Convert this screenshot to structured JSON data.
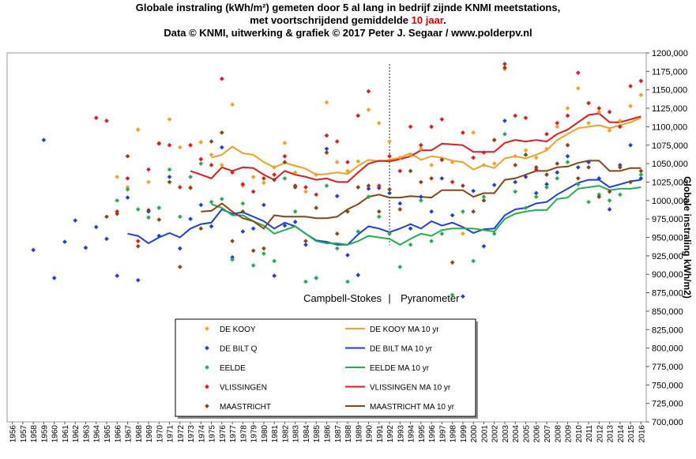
{
  "title": {
    "line1": "Globale instraling  (kWh/m²)  gemeten door  5 al lang in bedrijf  zijnde  KNMI  meetstations,",
    "line2_before": "met voortschrijdend  gemiddelde ",
    "line2_highlight": "10 jaar",
    "line2_after": ".",
    "line3": "Data © KNMI,  uitwerking  & grafiek  © 2017  Peter  J. Segaar  /  www.polderpv.nl"
  },
  "colors": {
    "de_kooy": "#f5a020",
    "de_bilt": "#1f3fe0",
    "eelde": "#21b14c",
    "vlissingen": "#e41a1a",
    "maastricht": "#8b4513",
    "accent_red": "#e00000"
  },
  "chart_data": {
    "type": "scatter",
    "x_start": 1956,
    "x_end": 2016,
    "ylabel": "Globale instraling  kWh/m2)",
    "ylim": [
      700,
      1200
    ],
    "y_tick_step": 25,
    "annotation": {
      "left": "Campbell-Stokes",
      "separator": "|",
      "right": "Pyranometer",
      "divider_year": 1992
    },
    "legend_placement": "bottom-center",
    "series": [
      {
        "name": "DE KOOY",
        "kind": "points",
        "color_key": "de_kooy",
        "x": [
          1966,
          1967,
          1968,
          1969,
          1970,
          1971,
          1972,
          1973,
          1974,
          1975,
          1976,
          1977,
          1978,
          1979,
          1980,
          1981,
          1982,
          1983,
          1984,
          1985,
          1986,
          1987,
          1988,
          1989,
          1990,
          1991,
          1992,
          1993,
          1994,
          1995,
          1996,
          1997,
          1998,
          1999,
          2000,
          2001,
          2002,
          2003,
          2004,
          2005,
          2006,
          2007,
          2008,
          2009,
          2010,
          2011,
          2012,
          2013,
          2014,
          2015,
          2016
        ],
        "y": [
          1032,
          1018,
          1096,
          1025,
          1078,
          1110,
          1072,
          1018,
          1079,
          1062,
          1048,
          1130,
          1020,
          1032,
          1024,
          1045,
          1078,
          1038,
          1012,
          1035,
          1133,
          1052,
          1040,
          1053,
          1123,
          1105,
          1080,
          1058,
          1062,
          1070,
          1048,
          1056,
          1052,
          955,
          1092,
          1048,
          1050,
          1178,
          1060,
          1068,
          1058,
          1070,
          1100,
          1125,
          1152,
          1105,
          1120,
          1095,
          1108,
          1128,
          1143
        ]
      },
      {
        "name": "DE BILT Q",
        "kind": "points",
        "color_key": "de_bilt",
        "x": [
          1958,
          1959,
          1960,
          1961,
          1962,
          1963,
          1964,
          1965,
          1966,
          1967,
          1968,
          1969,
          1970,
          1971,
          1972,
          1973,
          1974,
          1975,
          1976,
          1977,
          1978,
          1979,
          1980,
          1981,
          1982,
          1983,
          1984,
          1985,
          1986,
          1987,
          1988,
          1989,
          1990,
          1991,
          1992,
          1993,
          1994,
          1995,
          1996,
          1997,
          1998,
          1999,
          2000,
          2001,
          2002,
          2003,
          2004,
          2005,
          2006,
          2007,
          2008,
          2009,
          2010,
          2011,
          2012,
          2013,
          2014,
          2015,
          2016
        ],
        "y": [
          933,
          1082,
          895,
          944,
          973,
          936,
          964,
          948,
          898,
          1004,
          892,
          985,
          952,
          1032,
          935,
          975,
          994,
          965,
          1072,
          923,
          958,
          962,
          994,
          898,
          966,
          971,
          940,
          895,
          1070,
          1006,
          926,
          899,
          1016,
          1017,
          1010,
          996,
          962,
          1005,
          985,
          1030,
          980,
          870,
          1013,
          938,
          1021,
          1108,
          1025,
          1032,
          1010,
          1022,
          1038,
          1060,
          1045,
          1052,
          1030,
          988,
          1048,
          1075,
          1030
        ]
      },
      {
        "name": "EELDE",
        "kind": "points",
        "color_key": "eelde",
        "x": [
          1966,
          1967,
          1968,
          1969,
          1970,
          1971,
          1972,
          1973,
          1974,
          1975,
          1976,
          1977,
          1978,
          1979,
          1980,
          1981,
          1982,
          1983,
          1984,
          1985,
          1986,
          1987,
          1988,
          1989,
          1990,
          1991,
          1992,
          1993,
          1994,
          1995,
          1996,
          1997,
          1998,
          1999,
          2000,
          2001,
          2002,
          2003,
          2004,
          2005,
          2006,
          2007,
          2008,
          2009,
          2010,
          2011,
          2012,
          2013,
          2014,
          2015,
          2016
        ],
        "y": [
          1000,
          1015,
          988,
          977,
          990,
          1042,
          978,
          1032,
          1050,
          998,
          1002,
          920,
          996,
          912,
          928,
          918,
          1030,
          985,
          890,
          895,
          1020,
          935,
          890,
          958,
          1005,
          978,
          955,
          910,
          940,
          1000,
          945,
          955,
          872,
          985,
          918,
          1005,
          955,
          1090,
          1012,
          990,
          1005,
          1018,
          1030,
          1052,
          1022,
          998,
          1008,
          1000,
          1008,
          1025,
          1035
        ]
      },
      {
        "name": "VLISSINGEN",
        "kind": "points",
        "color_key": "vlissingen",
        "x": [
          1964,
          1965,
          1966,
          1967,
          1968,
          1969,
          1970,
          1971,
          1972,
          1973,
          1974,
          1975,
          1976,
          1977,
          1978,
          1979,
          1980,
          1981,
          1982,
          1983,
          1984,
          1985,
          1986,
          1987,
          1988,
          1989,
          1990,
          1991,
          1992,
          1993,
          1994,
          1995,
          1996,
          1997,
          1998,
          1999,
          2000,
          2001,
          2002,
          2003,
          2004,
          2005,
          2006,
          2007,
          2008,
          2009,
          2010,
          2011,
          2012,
          2013,
          2014,
          2015,
          2016
        ],
        "y": [
          1112,
          1108,
          985,
          1030,
          945,
          1042,
          1077,
          1075,
          1018,
          1075,
          1056,
          1048,
          1165,
          1038,
          1022,
          1012,
          1030,
          1035,
          1060,
          1020,
          1018,
          1008,
          1088,
          1080,
          1052,
          1115,
          1148,
          1020,
          1060,
          1040,
          1100,
          1075,
          1100,
          1110,
          1025,
          1092,
          1058,
          1065,
          1082,
          1185,
          1115,
          1112,
          1042,
          1090,
          1105,
          1115,
          1173,
          1132,
          1125,
          1120,
          1100,
          1155,
          1162
        ]
      },
      {
        "name": "MAASTRICHT",
        "kind": "points",
        "color_key": "maastricht",
        "x": [
          1965,
          1966,
          1967,
          1968,
          1969,
          1970,
          1971,
          1972,
          1973,
          1974,
          1975,
          1976,
          1977,
          1978,
          1979,
          1980,
          1981,
          1982,
          1983,
          1984,
          1985,
          1986,
          1987,
          1988,
          1989,
          1990,
          1991,
          1992,
          1993,
          1994,
          1995,
          1996,
          1997,
          1998,
          1999,
          2000,
          2001,
          2002,
          2003,
          2004,
          2005,
          2006,
          2007,
          2008,
          2009,
          2010,
          2011,
          2012,
          2013,
          2014,
          2015,
          2016
        ],
        "y": [
          978,
          982,
          1060,
          938,
          987,
          974,
          1025,
          910,
          1017,
          962,
          1080,
          1092,
          945,
          985,
          932,
          935,
          1028,
          1052,
          1018,
          945,
          990,
          1065,
          955,
          985,
          1018,
          1020,
          985,
          1015,
          988,
          1040,
          1025,
          1030,
          1055,
          916,
          1020,
          985,
          1000,
          1082,
          1180,
          1048,
          1062,
          1045,
          1035,
          1050,
          1075,
          1030,
          1045,
          1005,
          1012,
          1045,
          1025,
          1040
        ]
      },
      {
        "name": "DE KOOY MA 10 yr",
        "kind": "line",
        "color_key": "de_kooy",
        "x": [
          1975,
          1976,
          1977,
          1978,
          1979,
          1980,
          1981,
          1982,
          1983,
          1984,
          1985,
          1986,
          1987,
          1988,
          1989,
          1990,
          1991,
          1992,
          1993,
          1994,
          1995,
          1996,
          1997,
          1998,
          1999,
          2000,
          2001,
          2002,
          2003,
          2004,
          2005,
          2006,
          2007,
          2008,
          2009,
          2010,
          2011,
          2012,
          2013,
          2014,
          2015,
          2016
        ],
        "y": [
          1058,
          1062,
          1073,
          1064,
          1062,
          1052,
          1045,
          1051,
          1047,
          1043,
          1035,
          1036,
          1038,
          1036,
          1047,
          1055,
          1053,
          1055,
          1058,
          1064,
          1055,
          1060,
          1058,
          1054,
          1052,
          1042,
          1048,
          1044,
          1057,
          1060,
          1057,
          1062,
          1068,
          1082,
          1090,
          1098,
          1100,
          1102,
          1098,
          1102,
          1106,
          1112
        ]
      },
      {
        "name": "DE BILT MA 10 yr",
        "kind": "line",
        "color_key": "de_bilt",
        "x": [
          1967,
          1968,
          1969,
          1970,
          1971,
          1972,
          1973,
          1974,
          1975,
          1976,
          1977,
          1978,
          1979,
          1980,
          1981,
          1982,
          1983,
          1984,
          1985,
          1986,
          1987,
          1988,
          1989,
          1990,
          1991,
          1992,
          1993,
          1994,
          1995,
          1996,
          1997,
          1998,
          1999,
          2000,
          2001,
          2002,
          2003,
          2004,
          2005,
          2006,
          2007,
          2008,
          2009,
          2010,
          2011,
          2012,
          2013,
          2014,
          2015,
          2016
        ],
        "y": [
          955,
          952,
          942,
          950,
          956,
          950,
          962,
          968,
          970,
          988,
          982,
          984,
          978,
          972,
          962,
          970,
          965,
          955,
          946,
          944,
          940,
          940,
          954,
          965,
          962,
          957,
          962,
          968,
          962,
          972,
          966,
          970,
          964,
          956,
          961,
          962,
          980,
          988,
          990,
          996,
          998,
          1008,
          1016,
          1024,
          1028,
          1028,
          1018,
          1022,
          1026,
          1028
        ]
      },
      {
        "name": "EELDE MA 10 yr",
        "kind": "line",
        "color_key": "eelde",
        "x": [
          1975,
          1976,
          1977,
          1978,
          1979,
          1980,
          1981,
          1982,
          1983,
          1984,
          1985,
          1986,
          1987,
          1988,
          1989,
          1990,
          1991,
          1992,
          1993,
          1994,
          1995,
          1996,
          1997,
          1998,
          1999,
          2000,
          2001,
          2002,
          2003,
          2004,
          2005,
          2006,
          2007,
          2008,
          2009,
          2010,
          2011,
          2012,
          2013,
          2014,
          2015,
          2016
        ],
        "y": [
          995,
          990,
          980,
          980,
          972,
          966,
          955,
          960,
          965,
          955,
          945,
          942,
          942,
          940,
          945,
          952,
          950,
          948,
          940,
          948,
          955,
          952,
          960,
          962,
          962,
          962,
          960,
          958,
          975,
          982,
          985,
          987,
          987,
          1002,
          1004,
          1016,
          1018,
          1020,
          1014,
          1016,
          1016,
          1018
        ]
      },
      {
        "name": "VLISSINGEN MA 10 yr",
        "kind": "line",
        "color_key": "vlissingen",
        "x": [
          1973,
          1974,
          1975,
          1976,
          1977,
          1978,
          1979,
          1980,
          1981,
          1982,
          1983,
          1984,
          1985,
          1986,
          1987,
          1988,
          1989,
          1990,
          1991,
          1992,
          1993,
          1994,
          1995,
          1996,
          1997,
          1998,
          1999,
          2000,
          2001,
          2002,
          2003,
          2004,
          2005,
          2006,
          2007,
          2008,
          2009,
          2010,
          2011,
          2012,
          2013,
          2014,
          2015,
          2016
        ],
        "y": [
          1040,
          1035,
          1030,
          1045,
          1040,
          1045,
          1044,
          1035,
          1028,
          1040,
          1035,
          1032,
          1028,
          1030,
          1025,
          1025,
          1038,
          1050,
          1054,
          1053,
          1056,
          1060,
          1068,
          1068,
          1077,
          1076,
          1075,
          1066,
          1066,
          1066,
          1078,
          1082,
          1080,
          1082,
          1080,
          1090,
          1096,
          1106,
          1116,
          1118,
          1106,
          1106,
          1110,
          1114
        ]
      },
      {
        "name": "MAASTRICHT MA 10 yr",
        "kind": "line",
        "color_key": "maastricht",
        "x": [
          1974,
          1975,
          1976,
          1977,
          1978,
          1979,
          1980,
          1981,
          1982,
          1983,
          1984,
          1985,
          1986,
          1987,
          1988,
          1989,
          1990,
          1991,
          1992,
          1993,
          1994,
          1995,
          1996,
          1997,
          1998,
          1999,
          2000,
          2001,
          2002,
          2003,
          2004,
          2005,
          2006,
          2007,
          2008,
          2009,
          2010,
          2011,
          2012,
          2013,
          2014,
          2015,
          2016
        ],
        "y": [
          985,
          986,
          996,
          985,
          976,
          972,
          962,
          980,
          978,
          978,
          978,
          976,
          976,
          978,
          988,
          995,
          1005,
          1008,
          1004,
          1004,
          1006,
          1005,
          1004,
          1014,
          1014,
          1014,
          1005,
          1010,
          1010,
          1028,
          1030,
          1035,
          1040,
          1040,
          1045,
          1046,
          1051,
          1054,
          1054,
          1040,
          1040,
          1044,
          1044
        ]
      }
    ]
  }
}
